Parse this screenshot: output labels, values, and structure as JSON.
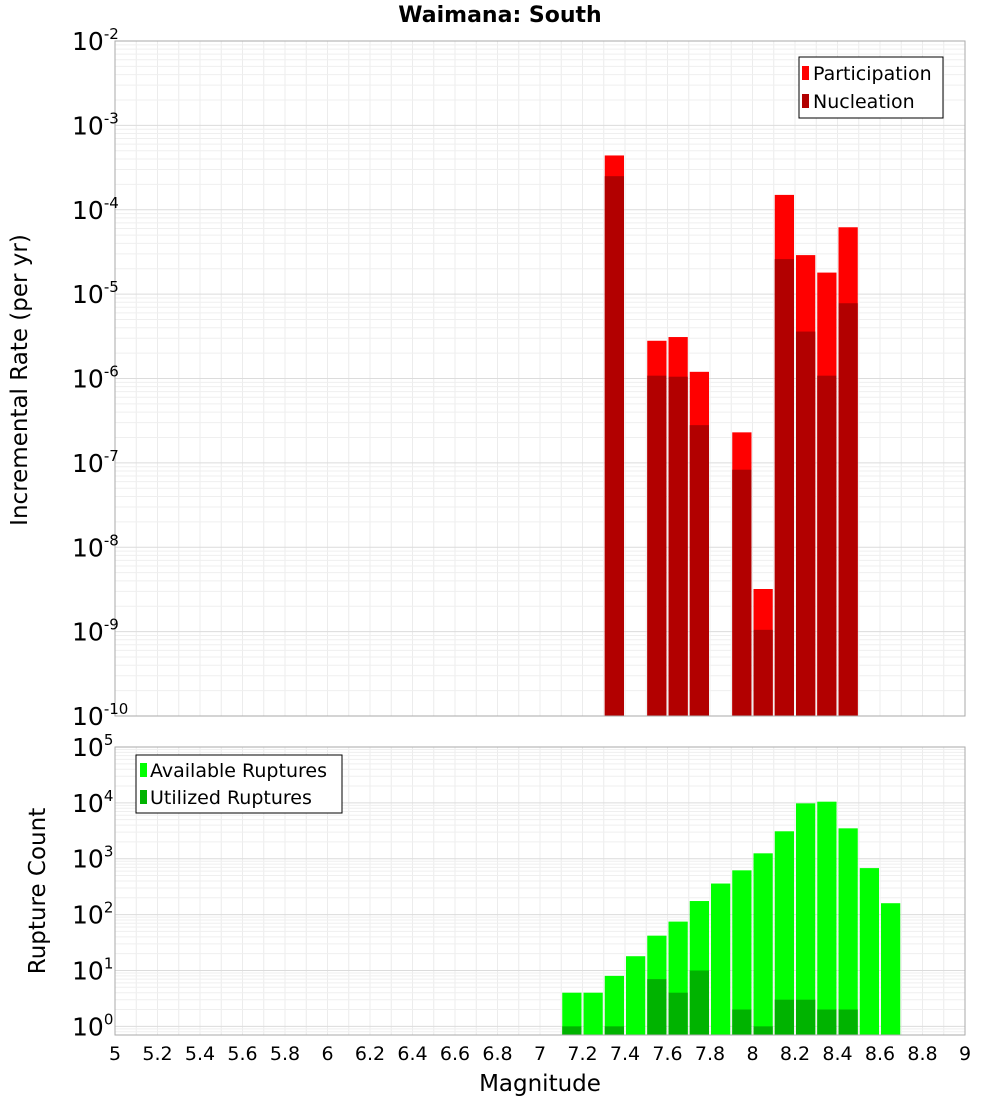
{
  "chart_data": [
    {
      "type": "bar",
      "title": "Waimana: South",
      "xlabel": "",
      "ylabel": "Incremental Rate (per yr)",
      "scale_y": "log",
      "xlim": [
        5,
        9
      ],
      "ylim": [
        1e-10,
        0.01
      ],
      "y_ticks": [
        {
          "base": "10",
          "exp": "-10"
        },
        {
          "base": "10",
          "exp": "-9"
        },
        {
          "base": "10",
          "exp": "-8"
        },
        {
          "base": "10",
          "exp": "-7"
        },
        {
          "base": "10",
          "exp": "-6"
        },
        {
          "base": "10",
          "exp": "-5"
        },
        {
          "base": "10",
          "exp": "-4"
        },
        {
          "base": "10",
          "exp": "-3"
        },
        {
          "base": "10",
          "exp": "-2"
        }
      ],
      "grid": true,
      "legend_position": "top-right",
      "bar_width": 0.1,
      "series": [
        {
          "name": "Participation",
          "color": "#ff0000",
          "x": [
            7.35,
            7.55,
            7.65,
            7.75,
            7.95,
            8.05,
            8.15,
            8.25,
            8.35,
            8.45
          ],
          "values": [
            0.00044,
            2.8e-06,
            3.1e-06,
            1.2e-06,
            2.3e-07,
            3.2e-09,
            0.00015,
            2.9e-05,
            1.8e-05,
            6.2e-05
          ]
        },
        {
          "name": "Nucleation",
          "color": "#b20000",
          "x": [
            7.35,
            7.55,
            7.65,
            7.75,
            7.95,
            8.05,
            8.15,
            8.25,
            8.35,
            8.45
          ],
          "values": [
            0.00025,
            1.08e-06,
            1.05e-06,
            2.8e-07,
            8.3e-08,
            1.05e-09,
            2.6e-05,
            3.6e-06,
            1.08e-06,
            7.8e-06
          ]
        }
      ]
    },
    {
      "type": "bar",
      "title": "",
      "xlabel": "Magnitude",
      "ylabel": "Rupture Count",
      "scale_y": "log",
      "xlim": [
        5,
        9
      ],
      "ylim": [
        0.7,
        100000
      ],
      "x_ticks": [
        "5",
        "5.2",
        "5.4",
        "5.6",
        "5.8",
        "6",
        "6.2",
        "6.4",
        "6.6",
        "6.8",
        "7",
        "7.2",
        "7.4",
        "7.6",
        "7.8",
        "8",
        "8.2",
        "8.4",
        "8.6",
        "8.8",
        "9"
      ],
      "y_ticks": [
        {
          "base": "10",
          "exp": "0"
        },
        {
          "base": "10",
          "exp": "1"
        },
        {
          "base": "10",
          "exp": "2"
        },
        {
          "base": "10",
          "exp": "3"
        },
        {
          "base": "10",
          "exp": "4"
        },
        {
          "base": "10",
          "exp": "5"
        }
      ],
      "grid": true,
      "legend_position": "top-left",
      "bar_width": 0.1,
      "series": [
        {
          "name": "Available Ruptures",
          "color": "#00ff00",
          "x": [
            7.15,
            7.25,
            7.35,
            7.45,
            7.55,
            7.65,
            7.75,
            7.85,
            7.95,
            8.05,
            8.15,
            8.25,
            8.35,
            8.45,
            8.55,
            8.65
          ],
          "values": [
            4,
            4,
            8,
            18,
            42,
            75,
            175,
            360,
            620,
            1250,
            3100,
            9800,
            10500,
            3500,
            680,
            160
          ]
        },
        {
          "name": "Utilized Ruptures",
          "color": "#00b300",
          "x": [
            7.15,
            7.35,
            7.55,
            7.65,
            7.75,
            7.95,
            8.05,
            8.15,
            8.25,
            8.35,
            8.45
          ],
          "values": [
            1,
            1,
            7,
            4,
            10,
            2,
            1,
            3,
            3,
            2,
            2
          ]
        }
      ]
    }
  ]
}
